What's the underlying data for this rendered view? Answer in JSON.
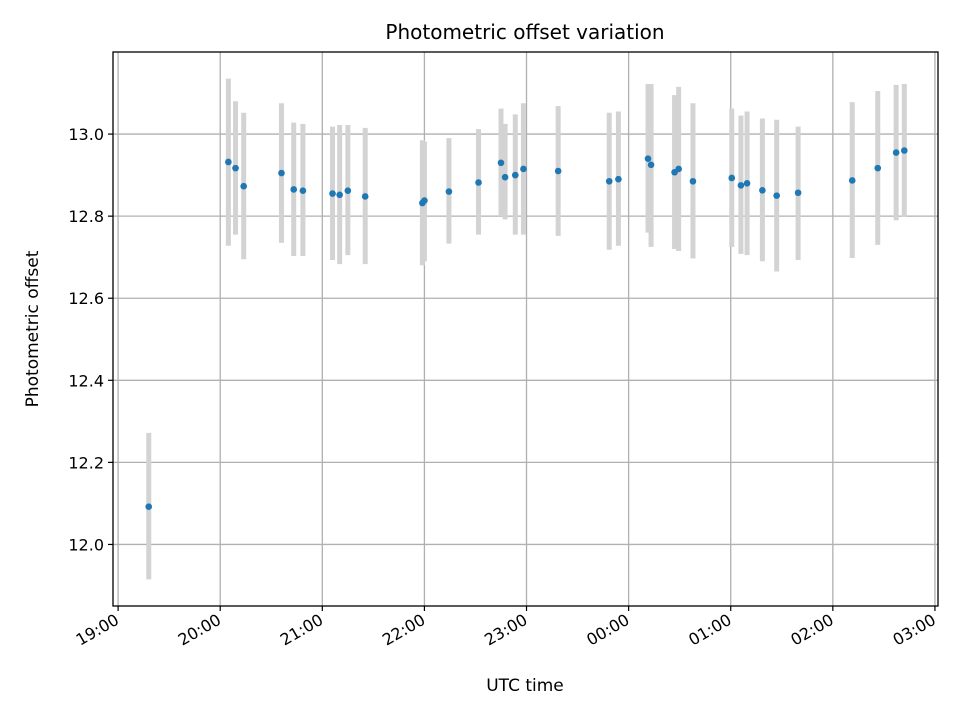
{
  "chart_data": {
    "type": "scatter",
    "title": "Photometric offset variation",
    "xlabel": "UTC time",
    "ylabel": "Photometric offset",
    "xlim_hours": [
      18.95,
      27.03
    ],
    "ylim": [
      11.85,
      13.2
    ],
    "grid": true,
    "x_ticks": [
      {
        "hour": 19,
        "label": "19:00"
      },
      {
        "hour": 20,
        "label": "20:00"
      },
      {
        "hour": 21,
        "label": "21:00"
      },
      {
        "hour": 22,
        "label": "22:00"
      },
      {
        "hour": 23,
        "label": "23:00"
      },
      {
        "hour": 24,
        "label": "00:00"
      },
      {
        "hour": 25,
        "label": "01:00"
      },
      {
        "hour": 26,
        "label": "02:00"
      },
      {
        "hour": 27,
        "label": "03:00"
      }
    ],
    "y_ticks": [
      {
        "value": 12.0,
        "label": "12.0"
      },
      {
        "value": 12.2,
        "label": "12.2"
      },
      {
        "value": 12.4,
        "label": "12.4"
      },
      {
        "value": 12.6,
        "label": "12.6"
      },
      {
        "value": 12.8,
        "label": "12.8"
      },
      {
        "value": 13.0,
        "label": "13.0"
      }
    ],
    "marker_color": "#1f77b4",
    "errorbar_color": "#d3d3d3",
    "points": [
      {
        "t": 19.3,
        "y": 12.092,
        "lo": 11.915,
        "hi": 12.272
      },
      {
        "t": 20.08,
        "y": 12.932,
        "lo": 12.728,
        "hi": 13.135
      },
      {
        "t": 20.15,
        "y": 12.917,
        "lo": 12.755,
        "hi": 13.08
      },
      {
        "t": 20.23,
        "y": 12.873,
        "lo": 12.695,
        "hi": 13.052
      },
      {
        "t": 20.6,
        "y": 12.905,
        "lo": 12.735,
        "hi": 13.075
      },
      {
        "t": 20.72,
        "y": 12.865,
        "lo": 12.703,
        "hi": 13.028
      },
      {
        "t": 20.81,
        "y": 12.862,
        "lo": 12.703,
        "hi": 13.025
      },
      {
        "t": 21.1,
        "y": 12.855,
        "lo": 12.693,
        "hi": 13.018
      },
      {
        "t": 21.17,
        "y": 12.852,
        "lo": 12.683,
        "hi": 13.022
      },
      {
        "t": 21.25,
        "y": 12.862,
        "lo": 12.705,
        "hi": 13.022
      },
      {
        "t": 21.42,
        "y": 12.848,
        "lo": 12.683,
        "hi": 13.015
      },
      {
        "t": 21.98,
        "y": 12.832,
        "lo": 12.68,
        "hi": 12.985
      },
      {
        "t": 22.0,
        "y": 12.838,
        "lo": 12.69,
        "hi": 12.982
      },
      {
        "t": 22.24,
        "y": 12.86,
        "lo": 12.733,
        "hi": 12.99
      },
      {
        "t": 22.53,
        "y": 12.882,
        "lo": 12.755,
        "hi": 13.012
      },
      {
        "t": 22.75,
        "y": 12.93,
        "lo": 12.8,
        "hi": 13.062
      },
      {
        "t": 22.79,
        "y": 12.895,
        "lo": 12.792,
        "hi": 13.025
      },
      {
        "t": 22.89,
        "y": 12.9,
        "lo": 12.755,
        "hi": 13.048
      },
      {
        "t": 22.97,
        "y": 12.915,
        "lo": 12.755,
        "hi": 13.075
      },
      {
        "t": 23.31,
        "y": 12.91,
        "lo": 12.752,
        "hi": 13.068
      },
      {
        "t": 23.81,
        "y": 12.885,
        "lo": 12.718,
        "hi": 13.052
      },
      {
        "t": 23.9,
        "y": 12.89,
        "lo": 12.728,
        "hi": 13.055
      },
      {
        "t": 24.19,
        "y": 12.94,
        "lo": 12.76,
        "hi": 13.122
      },
      {
        "t": 24.22,
        "y": 12.925,
        "lo": 12.725,
        "hi": 13.122
      },
      {
        "t": 24.45,
        "y": 12.907,
        "lo": 12.72,
        "hi": 13.095
      },
      {
        "t": 24.49,
        "y": 12.915,
        "lo": 12.715,
        "hi": 13.115
      },
      {
        "t": 24.63,
        "y": 12.885,
        "lo": 12.697,
        "hi": 13.075
      },
      {
        "t": 25.01,
        "y": 12.893,
        "lo": 12.725,
        "hi": 13.062
      },
      {
        "t": 25.1,
        "y": 12.875,
        "lo": 12.708,
        "hi": 13.045
      },
      {
        "t": 25.16,
        "y": 12.88,
        "lo": 12.705,
        "hi": 13.055
      },
      {
        "t": 25.31,
        "y": 12.863,
        "lo": 12.69,
        "hi": 13.038
      },
      {
        "t": 25.45,
        "y": 12.85,
        "lo": 12.665,
        "hi": 13.035
      },
      {
        "t": 25.66,
        "y": 12.857,
        "lo": 12.693,
        "hi": 13.018
      },
      {
        "t": 26.19,
        "y": 12.887,
        "lo": 12.698,
        "hi": 13.078
      },
      {
        "t": 26.44,
        "y": 12.917,
        "lo": 12.73,
        "hi": 13.105
      },
      {
        "t": 26.62,
        "y": 12.955,
        "lo": 12.79,
        "hi": 13.12
      },
      {
        "t": 26.7,
        "y": 12.96,
        "lo": 12.798,
        "hi": 13.122
      }
    ]
  }
}
